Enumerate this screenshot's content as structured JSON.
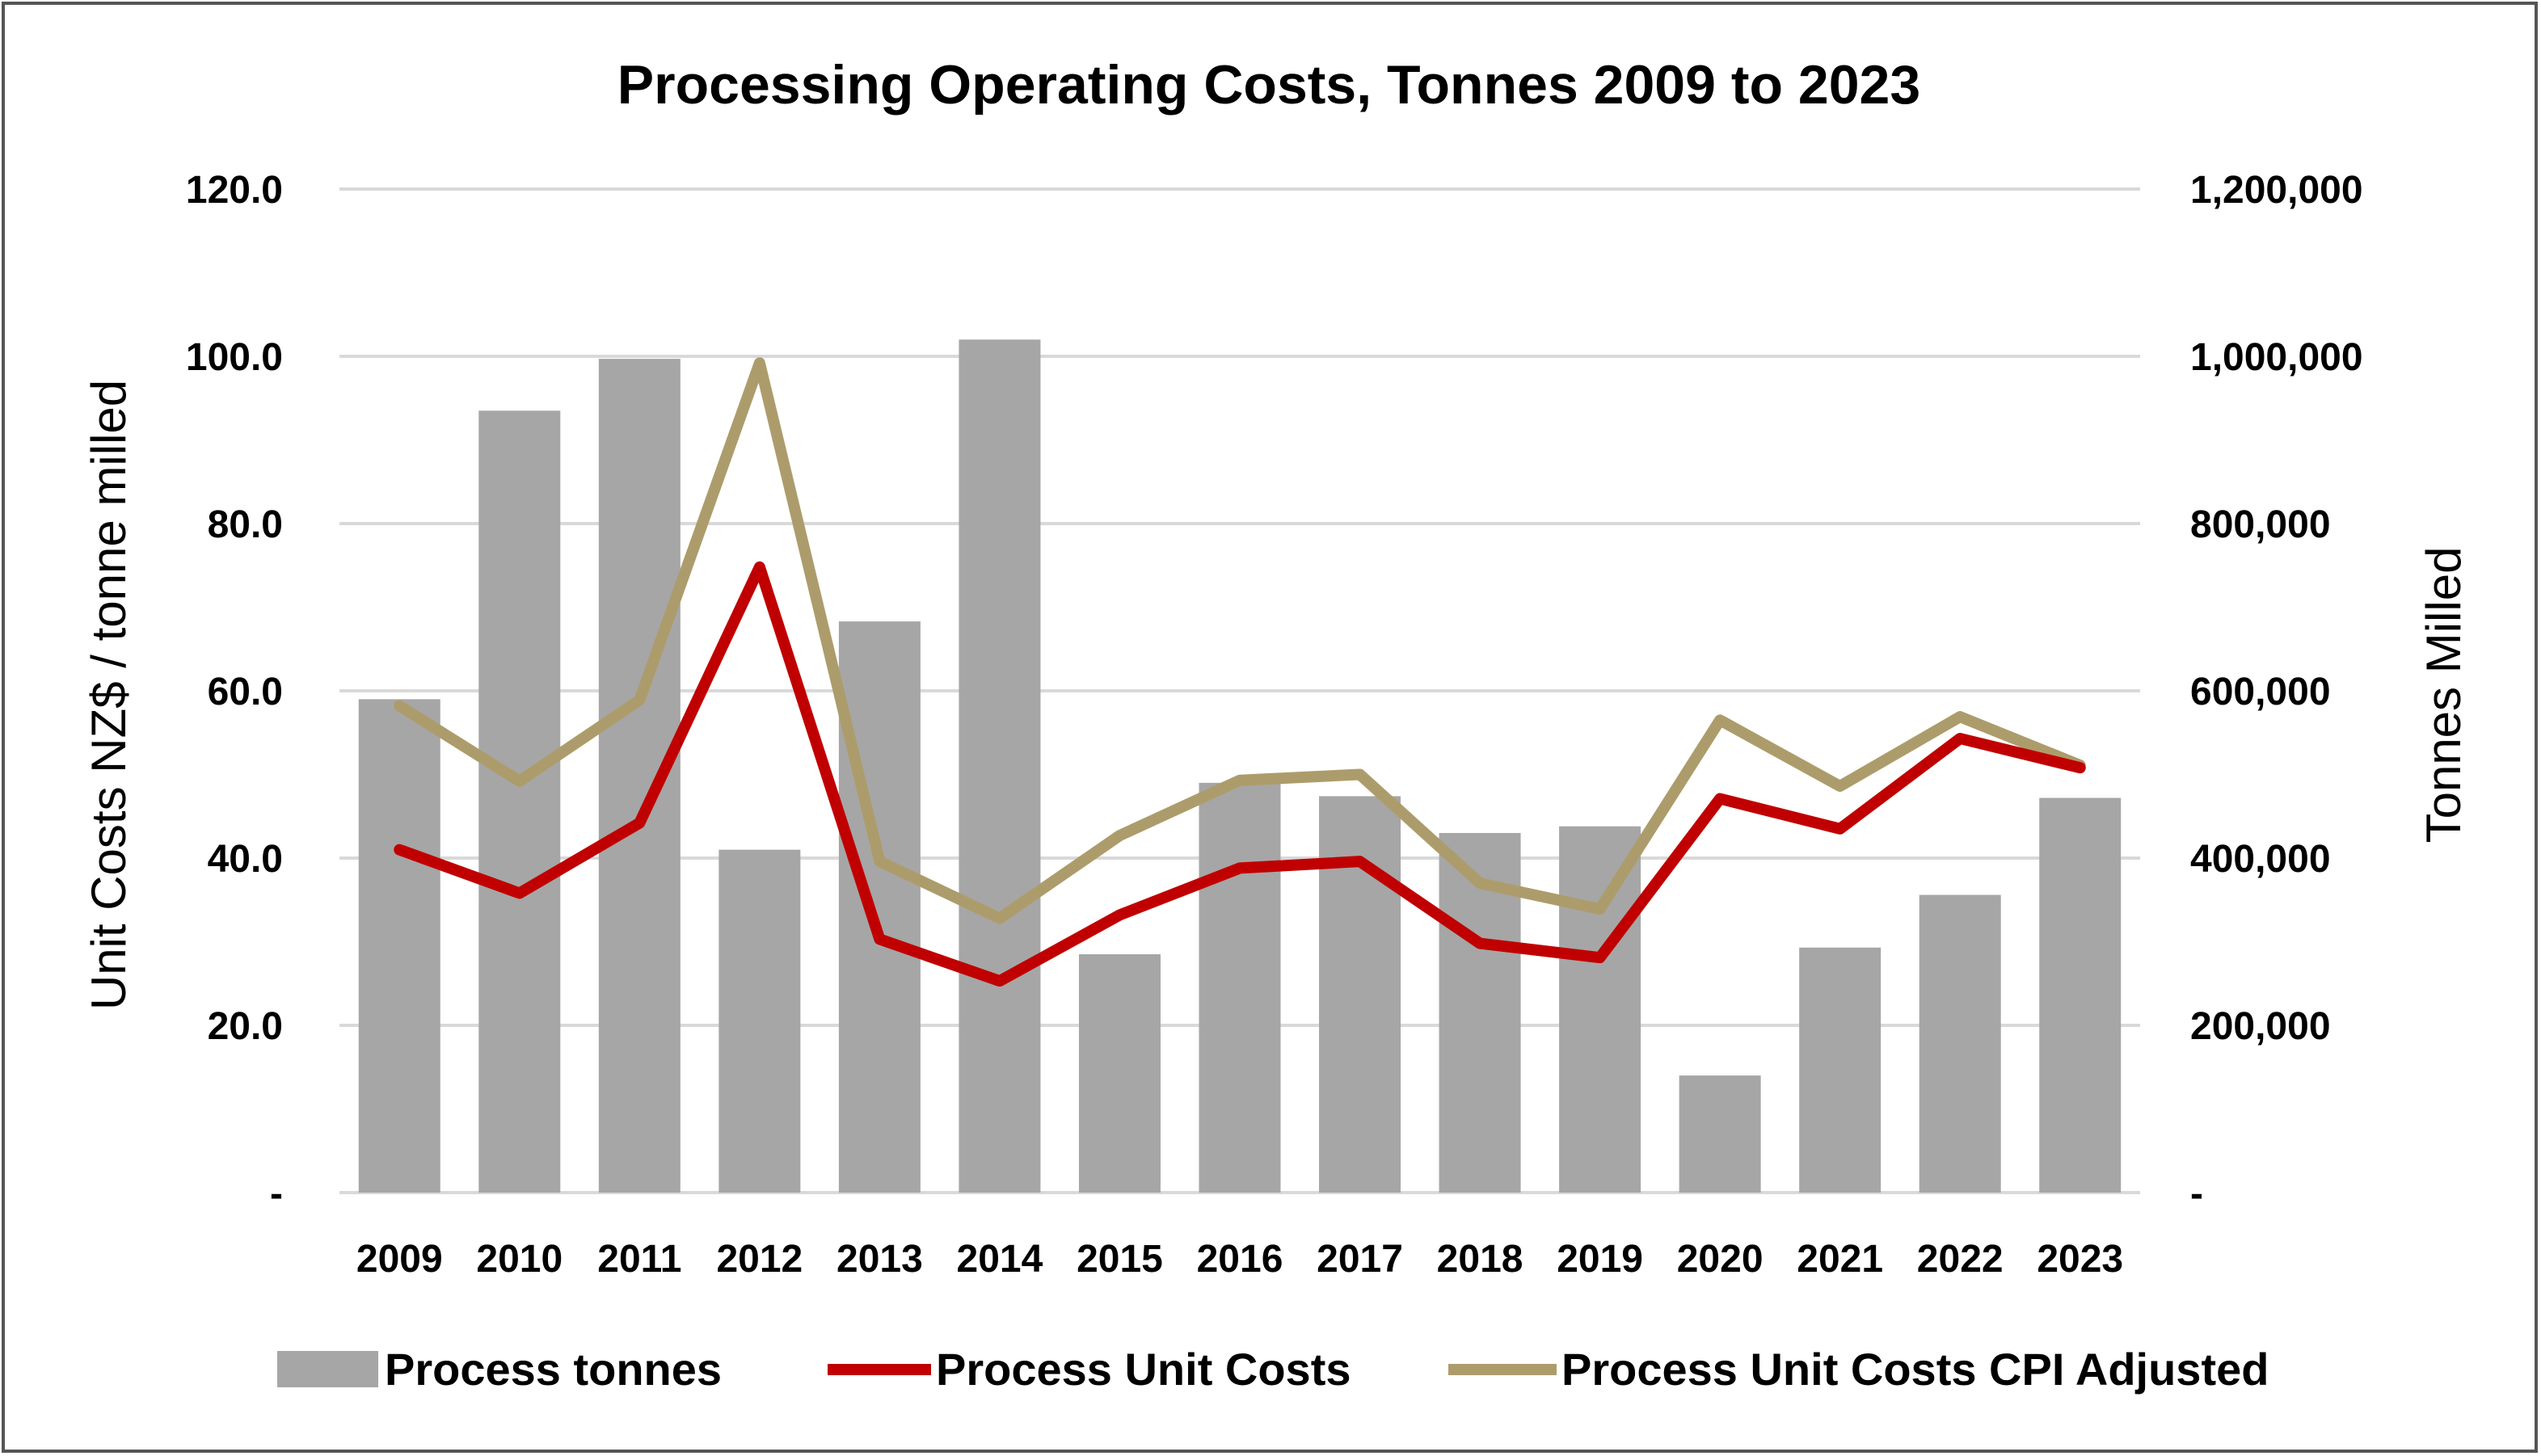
{
  "chart_data": {
    "type": "bar",
    "title": "Processing Operating Costs, Tonnes 2009 to 2023",
    "categories": [
      "2009",
      "2010",
      "2011",
      "2012",
      "2013",
      "2014",
      "2015",
      "2016",
      "2017",
      "2018",
      "2019",
      "2020",
      "2021",
      "2022",
      "2023"
    ],
    "ylabel_left": "Unit Costs NZ$ / tonne milled",
    "ylabel_right": "Tonnes Milled",
    "left_axis": {
      "min": 0,
      "max": 120,
      "ticks": [
        "-",
        "20.0",
        "40.0",
        "60.0",
        "80.0",
        "100.0",
        "120.0"
      ]
    },
    "right_axis": {
      "min": 0,
      "max": 1200000,
      "ticks": [
        "-",
        "200,000",
        "400,000",
        "600,000",
        "800,000",
        "1,000,000",
        "1,200,000"
      ]
    },
    "grid": true,
    "legend_position": "bottom",
    "series": [
      {
        "name": "Process tonnes",
        "type": "bar",
        "axis": "right",
        "color": "#a6a6a6",
        "values": [
          590000,
          935000,
          997000,
          410000,
          683000,
          1020000,
          285000,
          490000,
          474000,
          430000,
          438000,
          140000,
          293000,
          356000,
          472000
        ]
      },
      {
        "name": "Process Unit Costs",
        "type": "line",
        "axis": "left",
        "color": "#c00000",
        "values": [
          41.0,
          35.8,
          44.2,
          74.8,
          30.3,
          25.3,
          33.2,
          38.8,
          39.6,
          29.8,
          28.1,
          47.1,
          43.5,
          54.3,
          50.8
        ]
      },
      {
        "name": "Process Unit Costs CPI Adjusted",
        "type": "line",
        "axis": "left",
        "color": "#ad9c6b",
        "values": [
          58.2,
          49.2,
          58.9,
          99.2,
          39.6,
          32.8,
          42.7,
          49.3,
          50.0,
          37.0,
          33.9,
          56.5,
          48.6,
          56.9,
          51.1
        ]
      }
    ]
  }
}
